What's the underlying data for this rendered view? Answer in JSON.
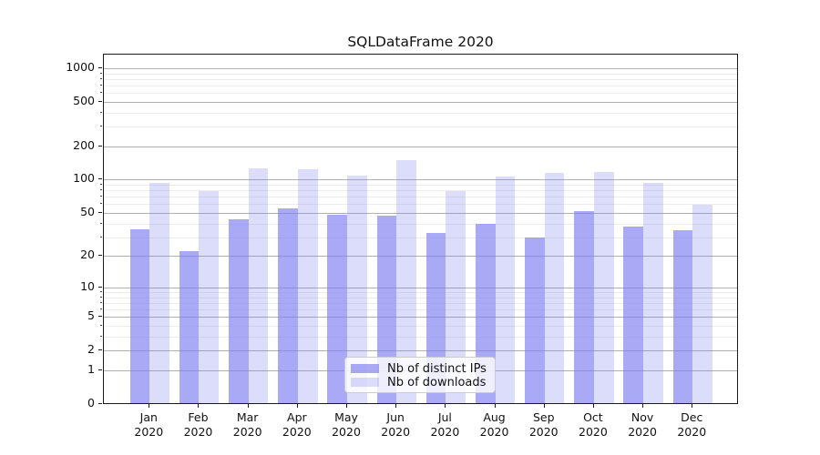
{
  "chart_data": {
    "type": "bar",
    "title": "SQLDataFrame 2020",
    "categories": [
      "Jan 2020",
      "Feb 2020",
      "Mar 2020",
      "Apr 2020",
      "May 2020",
      "Jun 2020",
      "Jul 2020",
      "Aug 2020",
      "Sep 2020",
      "Oct 2020",
      "Nov 2020",
      "Dec 2020"
    ],
    "x": {
      "months": [
        "Jan",
        "Feb",
        "Mar",
        "Apr",
        "May",
        "Jun",
        "Jul",
        "Aug",
        "Sep",
        "Oct",
        "Nov",
        "Dec"
      ],
      "year": "2020"
    },
    "series": [
      {
        "name": "Nb of distinct IPs",
        "color": "rgba(124,124,240,0.66)",
        "values": [
          35,
          22,
          43,
          54,
          47,
          46,
          32,
          39,
          29,
          51,
          37,
          34
        ]
      },
      {
        "name": "Nb of downloads",
        "color": "rgba(124,124,240,0.27)",
        "values": [
          91,
          77,
          125,
          123,
          106,
          147,
          77,
          104,
          114,
          116,
          91,
          58
        ]
      }
    ],
    "ylabel": "",
    "xlabel": "",
    "y_axis": {
      "scale": "log(y+1), symlog-style with 0 at baseline",
      "major_ticks": [
        0,
        1,
        2,
        5,
        10,
        20,
        50,
        100,
        200,
        500,
        1000
      ],
      "minor_ticks": [
        3,
        4,
        6,
        7,
        8,
        9,
        30,
        40,
        60,
        70,
        80,
        90,
        300,
        400,
        600,
        700,
        800,
        900
      ],
      "ylim": [
        0,
        1320
      ],
      "grid": "on (horizontal major + minor)"
    },
    "legend": {
      "position": "lower center"
    },
    "colors": {
      "bar_base": "#7c7cf0",
      "grid_major": "#b0b0b0",
      "grid_minor": "#ececec",
      "spine": "#1a1a1a",
      "text": "#111111",
      "legend_border": "#cccccc"
    }
  }
}
